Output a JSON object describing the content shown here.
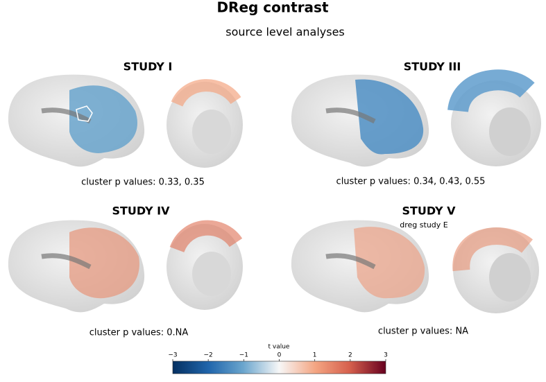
{
  "header": {
    "title": "DReg contrast",
    "subtitle": "source level analyses"
  },
  "panels": [
    {
      "title": "STUDY I",
      "p_values": "cluster p values: 0.33, 0.35"
    },
    {
      "title": "STUDY III",
      "p_values": "cluster p values: 0.34, 0.43, 0.55"
    },
    {
      "title": "STUDY IV",
      "p_values": "cluster p values: 0.NA"
    },
    {
      "title": "STUDY V",
      "note": "dreg study E",
      "p_values": "cluster p values: NA"
    }
  ],
  "colorbar": {
    "label": "t value",
    "lim": [
      -3,
      3
    ],
    "ticks": [
      {
        "value": -3,
        "label": "−3"
      },
      {
        "value": -2,
        "label": "−2"
      },
      {
        "value": -1,
        "label": "−1"
      },
      0,
      1,
      2,
      3
    ]
  }
}
